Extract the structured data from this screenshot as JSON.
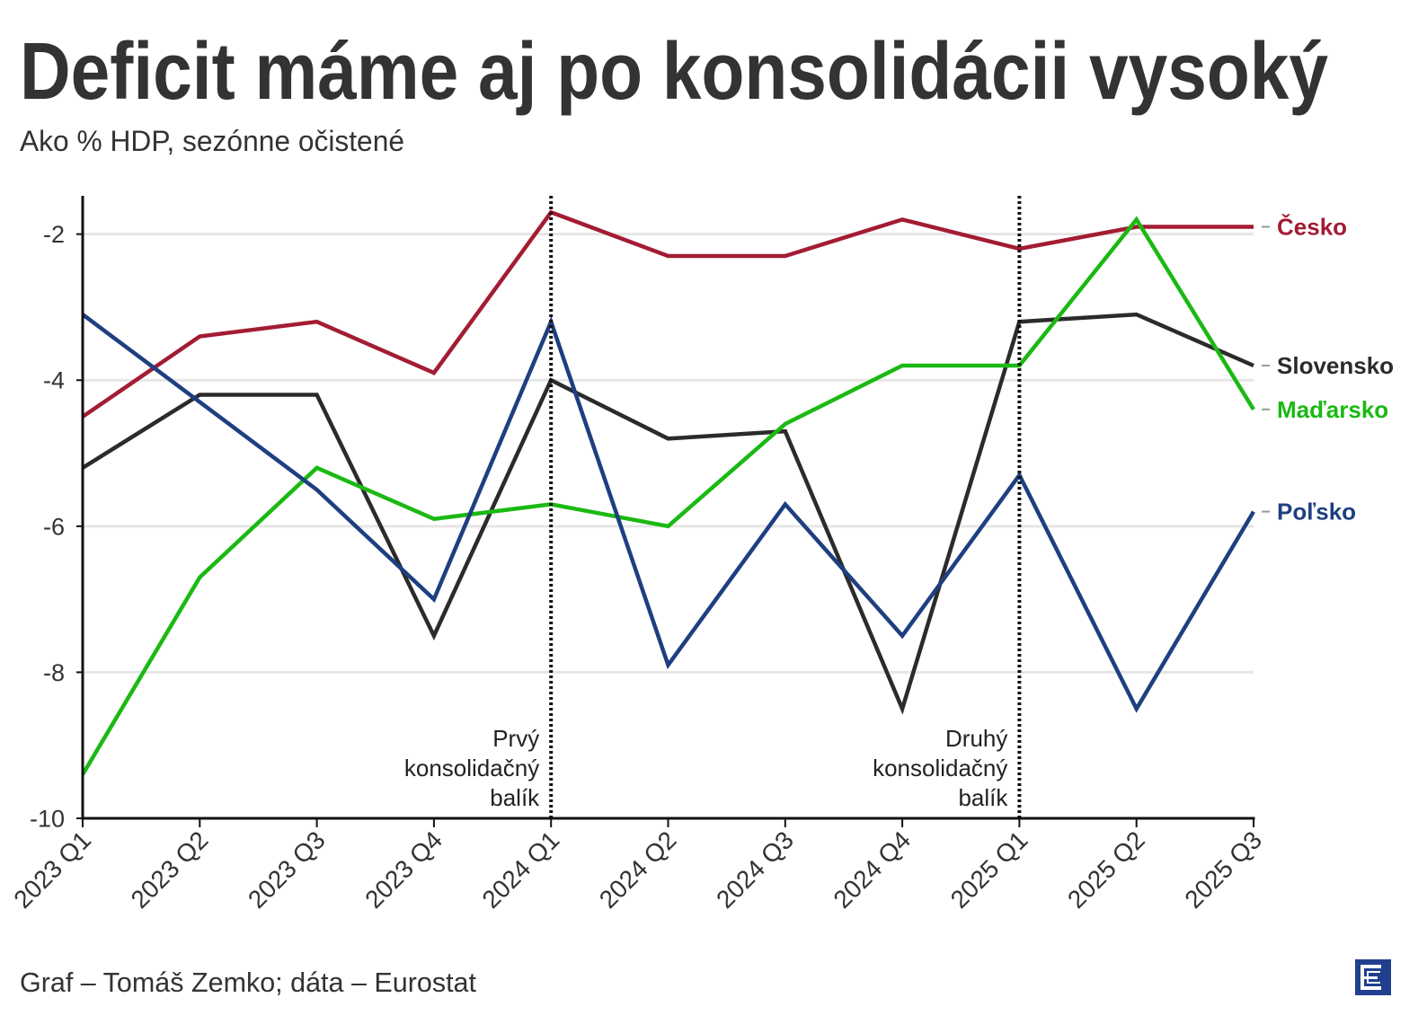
{
  "chart_data": {
    "type": "line",
    "title": "Deficit máme aj po konsolidácii vysoký",
    "subtitle": "Ako % HDP, sezónne očistené",
    "source": "Graf – Tomáš Zemko; dáta – Eurostat",
    "categories": [
      "2023 Q1",
      "2023 Q2",
      "2023 Q3",
      "2023 Q4",
      "2024 Q1",
      "2024 Q2",
      "2024 Q3",
      "2024 Q4",
      "2025 Q1",
      "2025 Q2",
      "2025 Q3"
    ],
    "series": [
      {
        "name": "Česko",
        "color": "#a31c33",
        "values": [
          -4.5,
          -3.4,
          -3.2,
          -3.9,
          -1.7,
          -2.3,
          -2.3,
          -1.8,
          -2.2,
          -1.9,
          -1.9
        ]
      },
      {
        "name": "Slovensko",
        "color": "#2b2b2b",
        "values": [
          -5.2,
          -4.2,
          -4.2,
          -7.5,
          -4.0,
          -4.8,
          -4.7,
          -8.5,
          -3.2,
          -3.1,
          -3.8
        ]
      },
      {
        "name": "Maďarsko",
        "color": "#1bb913",
        "values": [
          -9.4,
          -6.7,
          -5.2,
          -5.9,
          -5.7,
          -6.0,
          -4.6,
          -3.8,
          -3.8,
          -1.8,
          -4.4
        ]
      },
      {
        "name": "Poľsko",
        "color": "#1e3f80",
        "values": [
          -3.1,
          -4.3,
          -5.5,
          -7.0,
          -3.2,
          -7.9,
          -5.7,
          -7.5,
          -5.3,
          -8.5,
          -5.8
        ]
      }
    ],
    "ylim": [
      -10,
      -1.5
    ],
    "yticks": [
      -2,
      -4,
      -6,
      -8,
      -10
    ],
    "grid": "horizontal",
    "legend": "right",
    "annotations": [
      {
        "at": "2024 Q1",
        "style": "dotted",
        "lines": [
          "Prvý",
          "konsolidačný",
          "balík"
        ]
      },
      {
        "at": "2025 Q1",
        "style": "dotted",
        "lines": [
          "Druhý",
          "konsolidačný",
          "balík"
        ]
      }
    ]
  },
  "branding": {
    "logo_icon": "e-logo-icon",
    "logo_color": "#20408f"
  }
}
